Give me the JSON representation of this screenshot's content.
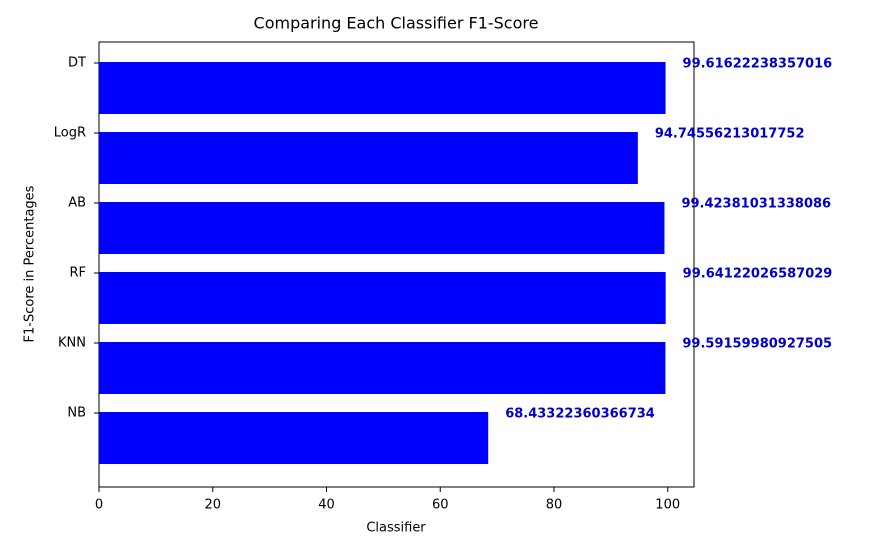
{
  "chart_data": {
    "type": "barh",
    "title": "Comparing Each Classifier F1-Score",
    "x_label": "Classifier",
    "y_label": "F1-Score in Percentages",
    "categories": [
      "NB",
      "KNN",
      "RF",
      "AB",
      "LogR",
      "DT"
    ],
    "values": [
      68.43322360366734,
      99.59159980927505,
      99.64122026587029,
      99.42381031338086,
      94.74556213017752,
      99.61622238357016
    ],
    "color": "#0000ff",
    "label_color": "#0000cd",
    "xlim": [
      0,
      104.62
    ],
    "xticks": [
      0,
      20,
      40,
      60,
      80,
      100
    ]
  }
}
